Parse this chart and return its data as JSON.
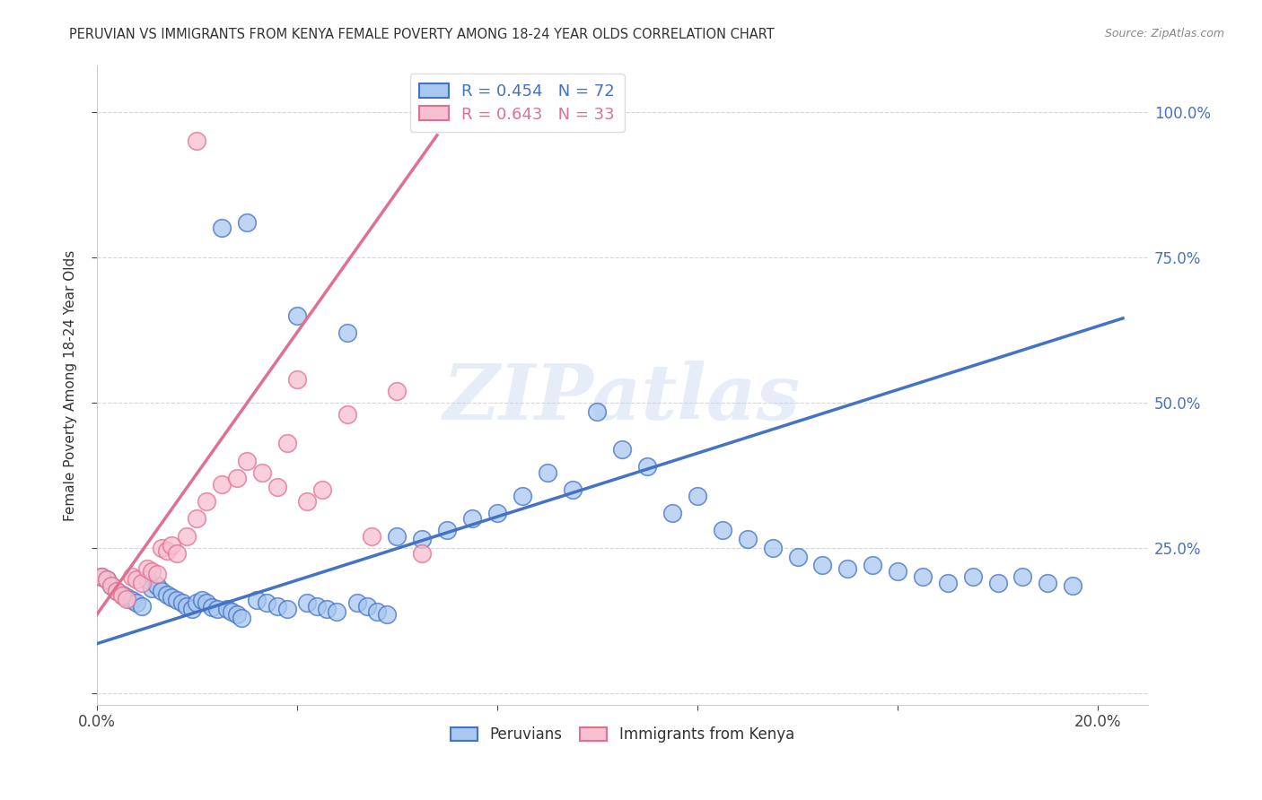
{
  "title": "PERUVIAN VS IMMIGRANTS FROM KENYA FEMALE POVERTY AMONG 18-24 YEAR OLDS CORRELATION CHART",
  "source": "Source: ZipAtlas.com",
  "ylabel": "Female Poverty Among 18-24 Year Olds",
  "xlim": [
    0.0,
    0.21
  ],
  "ylim": [
    -0.02,
    1.08
  ],
  "blue_color": "#A8C8F0",
  "pink_color": "#F8C0D0",
  "blue_line_color": "#4472C4",
  "pink_line_color": "#E07090",
  "legend_R_blue": "R = 0.454",
  "legend_N_blue": "N = 72",
  "legend_R_pink": "R = 0.643",
  "legend_N_pink": "N = 33",
  "blue_scatter_x": [
    0.001,
    0.002,
    0.003,
    0.004,
    0.005,
    0.006,
    0.007,
    0.008,
    0.009,
    0.01,
    0.011,
    0.012,
    0.013,
    0.014,
    0.015,
    0.016,
    0.017,
    0.018,
    0.019,
    0.02,
    0.021,
    0.022,
    0.023,
    0.024,
    0.025,
    0.026,
    0.027,
    0.028,
    0.029,
    0.03,
    0.032,
    0.034,
    0.036,
    0.038,
    0.04,
    0.042,
    0.044,
    0.046,
    0.048,
    0.05,
    0.052,
    0.054,
    0.056,
    0.058,
    0.06,
    0.065,
    0.07,
    0.075,
    0.08,
    0.085,
    0.09,
    0.095,
    0.1,
    0.105,
    0.11,
    0.115,
    0.12,
    0.125,
    0.13,
    0.135,
    0.14,
    0.145,
    0.15,
    0.155,
    0.16,
    0.165,
    0.17,
    0.175,
    0.18,
    0.185,
    0.19,
    0.195
  ],
  "blue_scatter_y": [
    0.2,
    0.195,
    0.185,
    0.175,
    0.17,
    0.165,
    0.16,
    0.155,
    0.15,
    0.195,
    0.18,
    0.185,
    0.175,
    0.17,
    0.165,
    0.16,
    0.155,
    0.15,
    0.145,
    0.155,
    0.16,
    0.155,
    0.148,
    0.145,
    0.8,
    0.145,
    0.14,
    0.135,
    0.13,
    0.81,
    0.16,
    0.155,
    0.15,
    0.145,
    0.65,
    0.155,
    0.15,
    0.145,
    0.14,
    0.62,
    0.155,
    0.15,
    0.14,
    0.135,
    0.27,
    0.265,
    0.28,
    0.3,
    0.31,
    0.34,
    0.38,
    0.35,
    0.485,
    0.42,
    0.39,
    0.31,
    0.34,
    0.28,
    0.265,
    0.25,
    0.235,
    0.22,
    0.215,
    0.22,
    0.21,
    0.2,
    0.19,
    0.2,
    0.19,
    0.2,
    0.19,
    0.185
  ],
  "pink_scatter_x": [
    0.001,
    0.002,
    0.003,
    0.004,
    0.005,
    0.006,
    0.007,
    0.008,
    0.009,
    0.01,
    0.011,
    0.012,
    0.013,
    0.014,
    0.015,
    0.016,
    0.018,
    0.02,
    0.022,
    0.025,
    0.028,
    0.03,
    0.033,
    0.036,
    0.038,
    0.04,
    0.042,
    0.045,
    0.05,
    0.055,
    0.06,
    0.065,
    0.02
  ],
  "pink_scatter_y": [
    0.2,
    0.195,
    0.185,
    0.175,
    0.168,
    0.162,
    0.2,
    0.195,
    0.19,
    0.215,
    0.21,
    0.205,
    0.25,
    0.245,
    0.255,
    0.24,
    0.27,
    0.3,
    0.33,
    0.36,
    0.37,
    0.4,
    0.38,
    0.355,
    0.43,
    0.54,
    0.33,
    0.35,
    0.48,
    0.27,
    0.52,
    0.24,
    0.95
  ],
  "blue_line_x0": 0.0,
  "blue_line_x1": 0.205,
  "blue_line_y0": 0.085,
  "blue_line_y1": 0.645,
  "pink_line_x0": 0.0,
  "pink_line_x1": 0.068,
  "pink_line_y0": 0.135,
  "pink_line_y1": 0.96,
  "watermark_text": "ZIPatlas",
  "grid_color": "#CCCCCC",
  "bg_color": "#FFFFFF"
}
